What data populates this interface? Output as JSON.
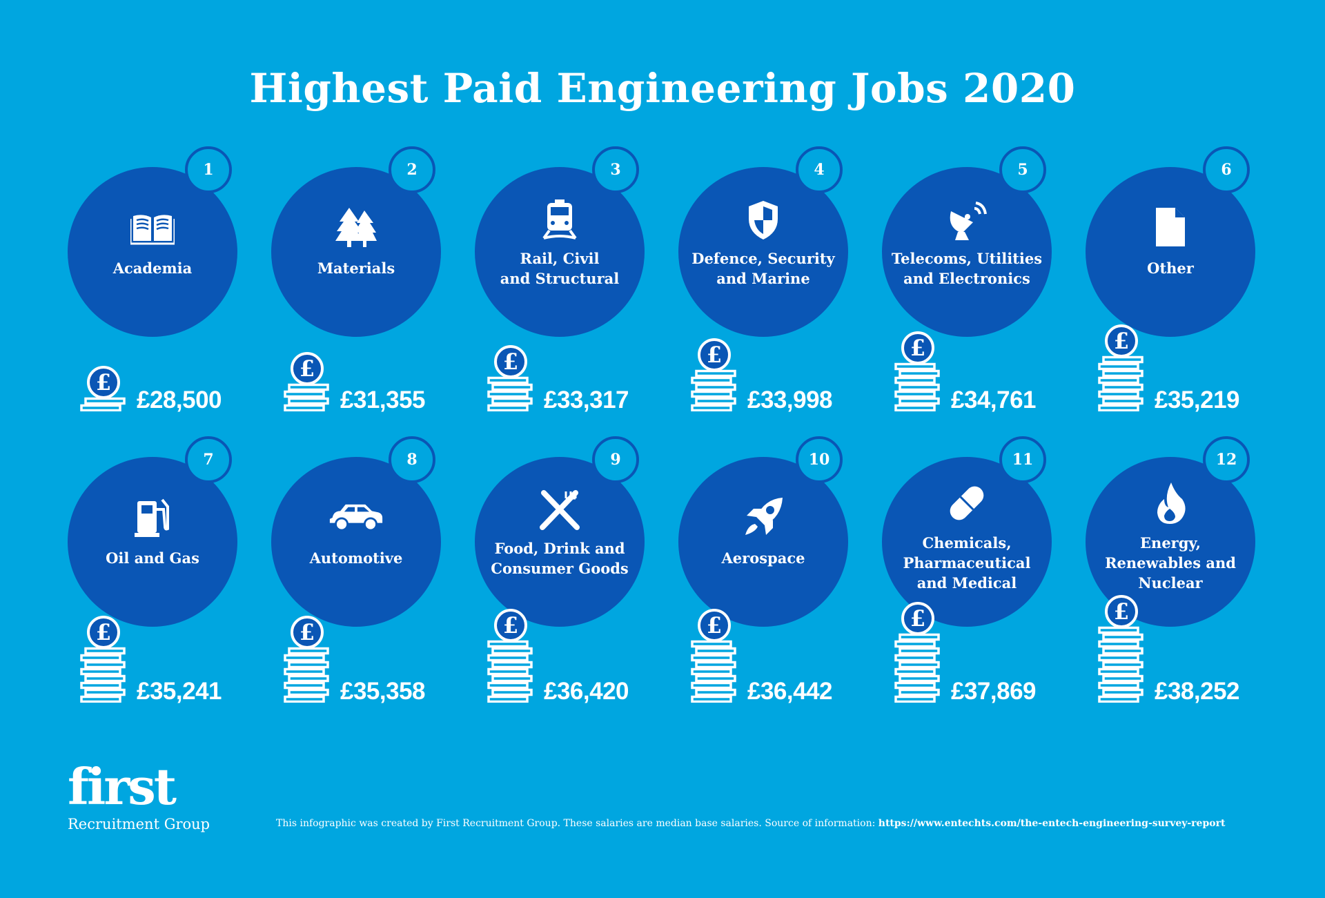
{
  "title": "Highest Paid Engineering Jobs 2020",
  "colors": {
    "background": "#00a6e0",
    "circle": "#0a56b5",
    "text": "#ffffff"
  },
  "jobs": [
    {
      "rank": "1",
      "label": "Academia",
      "salary": "£28,500",
      "icon": "book-icon",
      "coin_levels": 2
    },
    {
      "rank": "2",
      "label": "Materials",
      "salary": "£31,355",
      "icon": "trees-icon",
      "coin_levels": 4
    },
    {
      "rank": "3",
      "label": "Rail, Civil\nand Structural",
      "salary": "£33,317",
      "icon": "train-icon",
      "coin_levels": 5
    },
    {
      "rank": "4",
      "label": "Defence, Security\nand Marine",
      "salary": "£33,998",
      "icon": "shield-icon",
      "coin_levels": 6
    },
    {
      "rank": "5",
      "label": "Telecoms, Utilities\nand Electronics",
      "salary": "£34,761",
      "icon": "satellite-dish-icon",
      "coin_levels": 7
    },
    {
      "rank": "6",
      "label": "Other",
      "salary": "£35,219",
      "icon": "document-icon",
      "coin_levels": 8
    },
    {
      "rank": "7",
      "label": "Oil and Gas",
      "salary": "£35,241",
      "icon": "fuel-pump-icon",
      "coin_levels": 8
    },
    {
      "rank": "8",
      "label": "Automotive",
      "salary": "£35,358",
      "icon": "car-icon",
      "coin_levels": 8
    },
    {
      "rank": "9",
      "label": "Food, Drink and\nConsumer Goods",
      "salary": "£36,420",
      "icon": "fork-knife-icon",
      "coin_levels": 9
    },
    {
      "rank": "10",
      "label": "Aerospace",
      "salary": "£36,442",
      "icon": "rocket-icon",
      "coin_levels": 9
    },
    {
      "rank": "11",
      "label": "Chemicals,\nPharmaceutical\nand Medical",
      "salary": "£37,869",
      "icon": "pill-icon",
      "coin_levels": 10
    },
    {
      "rank": "12",
      "label": "Energy,\nRenewables and\nNuclear",
      "salary": "£38,252",
      "icon": "flame-icon",
      "coin_levels": 11
    }
  ],
  "logo": {
    "mark": "first",
    "sub": "Recruitment Group"
  },
  "footer": {
    "note": "This infographic was created by First Recruitment Group. These salaries are median base salaries. Source of information: ",
    "source": "https://www.entechts.com/the-entech-engineering-survey-report"
  }
}
